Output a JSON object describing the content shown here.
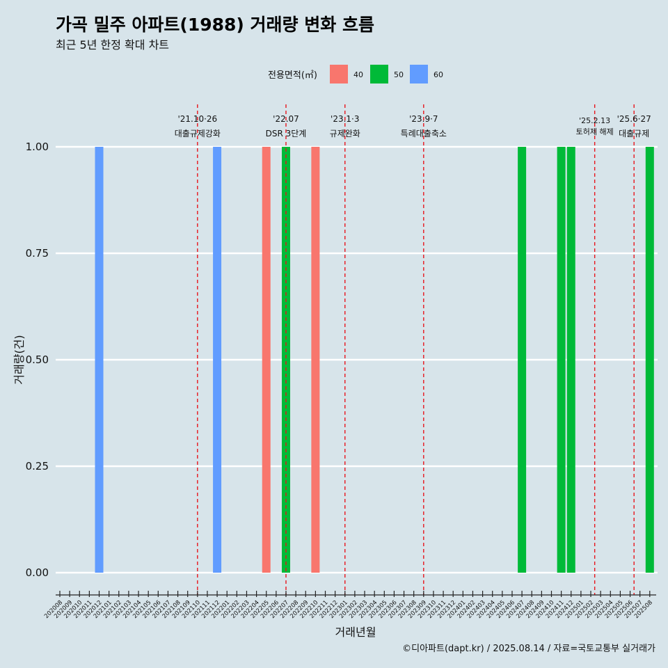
{
  "chart_data": {
    "type": "bar",
    "title": "가곡 밀주 아파트(1988) 거래량 변화 흐름",
    "subtitle": "최근 5년 한정 확대 차트",
    "xlabel": "거래년월",
    "ylabel": "거래량(건)",
    "ylim": [
      0,
      1
    ],
    "yticks": [
      "0.00",
      "0.25",
      "0.50",
      "0.75",
      "1.00"
    ],
    "legend": {
      "title": "전용면적(㎡)",
      "position": "top",
      "entries": [
        {
          "label": "40",
          "color": "#f8766d"
        },
        {
          "label": "50",
          "color": "#00ba38"
        },
        {
          "label": "60",
          "color": "#619cff"
        }
      ]
    },
    "categories": [
      "202008",
      "202009",
      "202010",
      "202011",
      "202012",
      "202101",
      "202102",
      "202103",
      "202104",
      "202105",
      "202106",
      "202107",
      "202108",
      "202109",
      "202110",
      "202111",
      "202112",
      "202201",
      "202202",
      "202203",
      "202204",
      "202205",
      "202206",
      "202207",
      "202208",
      "202209",
      "202210",
      "202211",
      "202212",
      "202301",
      "202302",
      "202303",
      "202304",
      "202305",
      "202306",
      "202307",
      "202308",
      "202309",
      "202310",
      "202311",
      "202312",
      "202401",
      "202402",
      "202403",
      "202404",
      "202405",
      "202406",
      "202407",
      "202408",
      "202409",
      "202410",
      "202411",
      "202412",
      "202501",
      "202502",
      "202503",
      "202504",
      "202505",
      "202506",
      "202507",
      "202508"
    ],
    "bars": [
      {
        "month": "202012",
        "area": "60",
        "value": 1
      },
      {
        "month": "202112",
        "area": "60",
        "value": 1
      },
      {
        "month": "202205",
        "area": "40",
        "value": 1
      },
      {
        "month": "202207",
        "area": "50",
        "value": 1
      },
      {
        "month": "202210",
        "area": "40",
        "value": 1
      },
      {
        "month": "202407",
        "area": "50",
        "value": 1
      },
      {
        "month": "202411",
        "area": "50",
        "value": 1
      },
      {
        "month": "202412",
        "area": "50",
        "value": 1
      },
      {
        "month": "202508",
        "area": "50",
        "value": 1
      }
    ],
    "events": [
      {
        "date_label": "'21.10·26",
        "text": "대출규제강화",
        "at": 14.0
      },
      {
        "date_label": "'22.07",
        "text": "DSR 3단계",
        "at": 23.0
      },
      {
        "date_label": "'23.1·3",
        "text": "규제완화",
        "at": 29.0
      },
      {
        "date_label": "'23.9·7",
        "text": "특례대출축소",
        "at": 37.0
      },
      {
        "date_label": "'25.2.13",
        "text": "토허제 해제",
        "at": 54.4
      },
      {
        "date_label": "'25.6·27",
        "text": "대출규제",
        "at": 58.4
      }
    ],
    "caption": "©디아파트(dapt.kr) / 2025.08.14 / 자료=국토교통부 실거래가"
  }
}
